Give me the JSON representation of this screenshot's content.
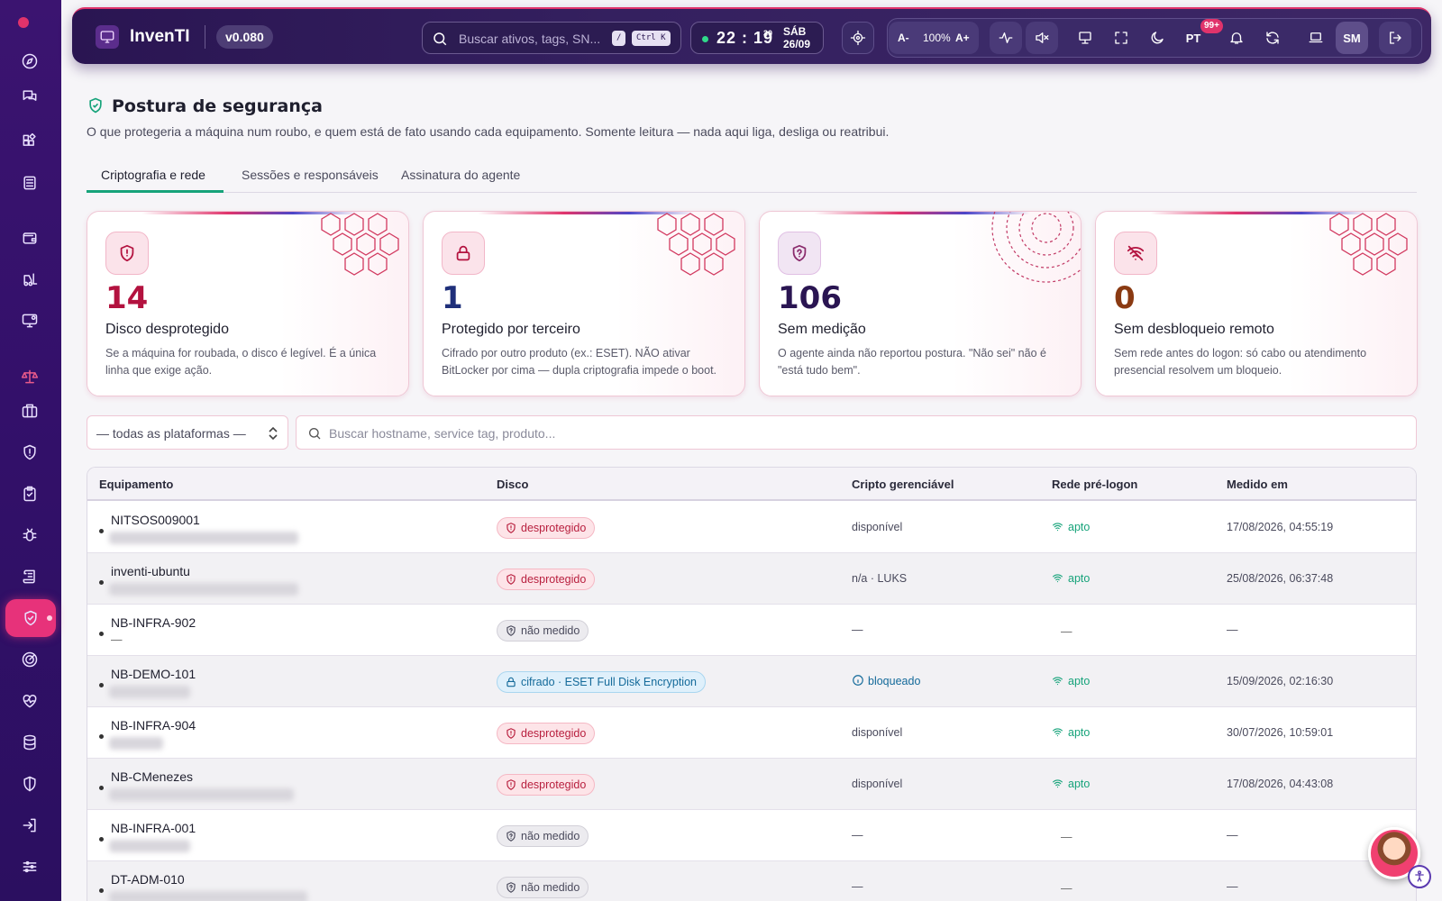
{
  "header": {
    "brand": "InvenTI",
    "version": "v0.080",
    "search_placeholder": "Buscar ativos, tags, SN...",
    "shortcut_slash": "/",
    "shortcut_ctrlk": "Ctrl K",
    "time": "22 : 19",
    "seconds": "30",
    "weekday": "SÁB",
    "date": "26/09",
    "zoom_minus": "A-",
    "zoom_level": "100%",
    "zoom_plus": "A+",
    "language": "PT",
    "notifications_badge": "99+",
    "user_initials": "SM"
  },
  "page": {
    "title": "Postura de segurança",
    "subtitle": "O que protegeria a máquina num roubo, e quem está de fato usando cada equipamento. Somente leitura — nada aqui liga, desliga ou reatribui."
  },
  "tabs": [
    "Criptografia e rede",
    "Sessões e responsáveis",
    "Assinatura do agente"
  ],
  "cards": [
    {
      "value": "14",
      "label": "Disco desprotegido",
      "desc": "Se a máquina for roubada, o disco é legível. É a única linha que exige ação.",
      "color": "#b3123f"
    },
    {
      "value": "1",
      "label": "Protegido por terceiro",
      "desc": "Cifrado por outro produto (ex.: ESET). NÃO ativar BitLocker por cima — dupla criptografia impede o boot.",
      "color": "#1f2f7a"
    },
    {
      "value": "106",
      "label": "Sem medição",
      "desc": "O agente ainda não reportou postura. \"Não sei\" não é \"está tudo bem\".",
      "color": "#2a1552"
    },
    {
      "value": "0",
      "label": "Sem desbloqueio remoto",
      "desc": "Sem rede antes do logon: só cabo ou atendimento presencial resolvem um bloqueio.",
      "color": "#8a3a12"
    }
  ],
  "filters": {
    "platform": "— todas as plataformas —",
    "search_placeholder": "Buscar hostname, service tag, produto..."
  },
  "table": {
    "columns": [
      "Equipamento",
      "Disco",
      "Cripto gerenciável",
      "Rede pré-logon",
      "Medido em"
    ],
    "rows": [
      {
        "host": "NITSOS009001",
        "sub": "",
        "disk": "desprotegido",
        "disk_status": "red",
        "crypto": "disponível",
        "crypto_info": false,
        "net": "apto",
        "measured": "17/08/2026, 04:55:19"
      },
      {
        "host": "inventi-ubuntu",
        "sub": "",
        "disk": "desprotegido",
        "disk_status": "red",
        "crypto": "n/a · LUKS",
        "crypto_info": false,
        "net": "apto",
        "measured": "25/08/2026, 06:37:48"
      },
      {
        "host": "NB-INFRA-902",
        "sub": "—",
        "disk": "não medido",
        "disk_status": "grey",
        "crypto": "—",
        "crypto_info": false,
        "net": "—",
        "measured": "—"
      },
      {
        "host": "NB-DEMO-101",
        "sub": "",
        "disk": "cifrado · ESET Full Disk Encryption",
        "disk_status": "blue",
        "crypto": "bloqueado",
        "crypto_info": true,
        "net": "apto",
        "measured": "15/09/2026, 02:16:30"
      },
      {
        "host": "NB-INFRA-904",
        "sub": "",
        "disk": "desprotegido",
        "disk_status": "red",
        "crypto": "disponível",
        "crypto_info": false,
        "net": "apto",
        "measured": "30/07/2026, 10:59:01"
      },
      {
        "host": "NB-CMenezes",
        "sub": "",
        "disk": "desprotegido",
        "disk_status": "red",
        "crypto": "disponível",
        "crypto_info": false,
        "net": "apto",
        "measured": "17/08/2026, 04:43:08"
      },
      {
        "host": "NB-INFRA-001",
        "sub": "",
        "disk": "não medido",
        "disk_status": "grey",
        "crypto": "—",
        "crypto_info": false,
        "net": "—",
        "measured": "—"
      },
      {
        "host": "DT-ADM-010",
        "sub": "",
        "disk": "não medido",
        "disk_status": "grey",
        "crypto": "—",
        "crypto_info": false,
        "net": "—",
        "measured": "—"
      }
    ]
  },
  "sidebar_icons": [
    "compass-icon",
    "chat-icon",
    "widgets-icon",
    "building-icon",
    "wallet-icon",
    "forklift-icon",
    "monitor-settings-icon",
    "scale-icon",
    "briefcase-icon",
    "shield-alert-icon",
    "clipboard-check-icon",
    "bug-icon",
    "scroll-icon",
    "shield-check-icon",
    "radar-icon",
    "heart-pulse-icon",
    "database-icon",
    "shield-half-icon",
    "login-icon",
    "sliders-icon"
  ],
  "colors": {
    "accent": "#e0336b",
    "success": "#16a37a",
    "sidebar": "#33106a"
  }
}
